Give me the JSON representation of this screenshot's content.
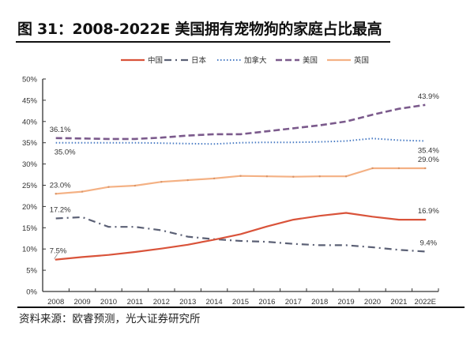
{
  "title": "图 31：2008-2022E 美国拥有宠物狗的家庭占比最高",
  "source": "资料来源：欧睿预测，光大证券研究所",
  "chart_data": {
    "type": "line",
    "title": "图 31：2008-2022E 美国拥有宠物狗的家庭占比最高",
    "xlabel": "",
    "ylabel": "",
    "categories": [
      "2008",
      "2009",
      "2010",
      "2011",
      "2012",
      "2013",
      "2014",
      "2015",
      "2016",
      "2017",
      "2018",
      "2019",
      "2020",
      "2021",
      "2022E"
    ],
    "ylim": [
      0,
      50
    ],
    "yticks": [
      0,
      5,
      10,
      15,
      20,
      25,
      30,
      35,
      40,
      45,
      50
    ],
    "ytick_labels": [
      "0%",
      "5%",
      "10%",
      "15%",
      "20%",
      "25%",
      "30%",
      "35%",
      "40%",
      "45%",
      "50%"
    ],
    "grid": false,
    "legend_position": "top",
    "series": [
      {
        "name": "中国",
        "color": "#d9533a",
        "style": "solid",
        "values": [
          7.5,
          8.1,
          8.6,
          9.3,
          10.1,
          11.0,
          12.2,
          13.5,
          15.3,
          16.9,
          17.8,
          18.5,
          17.6,
          16.9,
          16.9
        ]
      },
      {
        "name": "日本",
        "color": "#5b6075",
        "style": "dashdot",
        "values": [
          17.2,
          17.5,
          15.2,
          15.2,
          14.4,
          12.9,
          12.3,
          11.9,
          11.7,
          11.2,
          10.9,
          10.9,
          10.4,
          9.8,
          9.4
        ]
      },
      {
        "name": "加拿大",
        "color": "#4a7cc4",
        "style": "dotted",
        "values": [
          35.0,
          35.0,
          35.0,
          35.0,
          34.9,
          34.8,
          34.7,
          35.0,
          35.1,
          35.1,
          35.2,
          35.4,
          36.0,
          35.6,
          35.4
        ]
      },
      {
        "name": "美国",
        "color": "#7b5a8c",
        "style": "dashed",
        "values": [
          36.1,
          36.0,
          35.9,
          35.9,
          36.2,
          36.7,
          37.0,
          37.0,
          37.7,
          38.4,
          39.1,
          40.0,
          41.6,
          43.0,
          43.9
        ]
      },
      {
        "name": "英国",
        "color": "#f4b184",
        "style": "solid",
        "values": [
          23.0,
          23.5,
          24.6,
          24.9,
          25.8,
          26.2,
          26.6,
          27.2,
          27.1,
          27.0,
          27.1,
          27.1,
          29.0,
          29.0,
          29.0
        ]
      }
    ],
    "annotations": [
      {
        "series": "美国",
        "index": 0,
        "text": "36.1%",
        "pos": "above"
      },
      {
        "series": "加拿大",
        "index": 0,
        "text": "35.0%",
        "pos": "below"
      },
      {
        "series": "英国",
        "index": 0,
        "text": "23.0%",
        "pos": "above"
      },
      {
        "series": "日本",
        "index": 0,
        "text": "17.2%",
        "pos": "above"
      },
      {
        "series": "中国",
        "index": 0,
        "text": "7.5%",
        "pos": "above"
      },
      {
        "series": "美国",
        "index": 14,
        "text": "43.9%",
        "pos": "above"
      },
      {
        "series": "加拿大",
        "index": 14,
        "text": "35.4%",
        "pos": "below"
      },
      {
        "series": "英国",
        "index": 14,
        "text": "29.0%",
        "pos": "above"
      },
      {
        "series": "中国",
        "index": 14,
        "text": "16.9%",
        "pos": "above"
      },
      {
        "series": "日本",
        "index": 14,
        "text": "9.4%",
        "pos": "above"
      }
    ]
  }
}
